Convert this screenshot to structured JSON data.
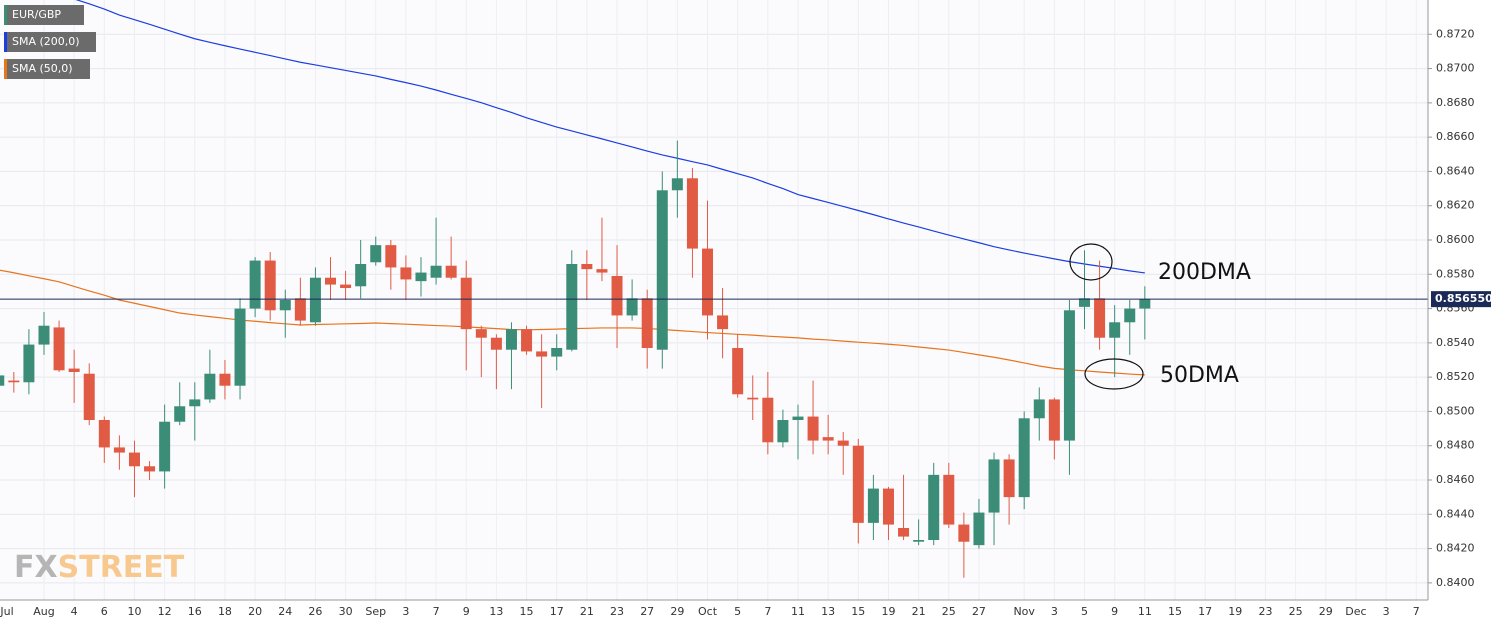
{
  "chart_data": {
    "type": "candlestick",
    "categories": [
      "Jul",
      null,
      null,
      "Aug",
      null,
      "4",
      null,
      "6",
      null,
      "10",
      null,
      "12",
      null,
      "16",
      null,
      "18",
      null,
      "20",
      null,
      "24",
      null,
      "26",
      null,
      "30",
      null,
      "Sep",
      null,
      "3",
      null,
      "7",
      null,
      "9",
      null,
      "13",
      null,
      "15",
      null,
      "17",
      null,
      "21",
      null,
      "23",
      null,
      "27",
      null,
      "29",
      null,
      "Oct",
      null,
      "5",
      null,
      "7",
      null,
      "11",
      null,
      "13",
      null,
      "15",
      null,
      "19",
      null,
      "21",
      null,
      "25",
      null,
      "27",
      null,
      null,
      "Nov",
      null,
      "3",
      null,
      "5",
      null,
      "9",
      null,
      "11",
      null,
      "15",
      null,
      "17",
      null,
      "19",
      null,
      "23",
      null,
      "25",
      null,
      "29",
      null,
      "Dec",
      null,
      "3",
      null,
      "7"
    ],
    "series": [
      {
        "name": "EUR/GBP",
        "up_color": "#3b8d78",
        "down_color": "#e05a44",
        "open": [
          0.8515,
          0.8518,
          0.8517,
          0.8539,
          0.8549,
          0.8525,
          0.8522,
          0.8495,
          0.8479,
          0.8476,
          0.8468,
          0.8465,
          0.8494,
          0.8503,
          0.8507,
          0.8522,
          0.8515,
          0.856,
          0.8588,
          0.8559,
          0.8566,
          0.8552,
          0.8578,
          0.8574,
          0.8573,
          0.8587,
          0.8597,
          0.8584,
          0.8576,
          0.8578,
          0.8585,
          0.8578,
          0.8548,
          0.8543,
          0.8536,
          0.8548,
          0.8535,
          0.8532,
          0.8536,
          0.8586,
          0.8583,
          0.8579,
          0.8556,
          0.8566,
          0.8536,
          0.8629,
          0.8636,
          0.8595,
          0.8556,
          0.8537,
          0.8508,
          0.8508,
          0.8482,
          0.8495,
          0.8497,
          0.8485,
          0.8483,
          0.848,
          0.8435,
          0.8455,
          0.8432,
          0.8424,
          0.8425,
          0.8463,
          0.8434,
          0.8422,
          0.8441,
          0.8472,
          0.845,
          0.8496,
          0.8507,
          0.8483,
          0.8561,
          0.8566,
          0.8543,
          0.8552,
          0.856,
          null,
          null,
          null,
          null,
          null,
          null,
          null,
          null,
          null,
          null,
          null,
          null,
          null,
          null,
          null,
          null,
          null,
          null
        ],
        "high": [
          0.8523,
          0.8523,
          0.8548,
          0.8558,
          0.8553,
          0.8536,
          0.8528,
          0.8497,
          0.8486,
          0.8483,
          0.8471,
          0.8504,
          0.8517,
          0.8517,
          0.8536,
          0.853,
          0.8566,
          0.859,
          0.8593,
          0.8571,
          0.8578,
          0.8584,
          0.859,
          0.8582,
          0.86,
          0.8602,
          0.86,
          0.8591,
          0.859,
          0.8613,
          0.8602,
          0.8588,
          0.855,
          0.8545,
          0.8552,
          0.855,
          0.8545,
          0.8545,
          0.8594,
          0.8594,
          0.8613,
          0.8597,
          0.8577,
          0.8571,
          0.864,
          0.8658,
          0.8642,
          0.8623,
          0.8572,
          0.8545,
          0.8521,
          0.8523,
          0.8501,
          0.8504,
          0.8518,
          0.8498,
          0.8488,
          0.8484,
          0.8463,
          0.8456,
          0.8463,
          0.8437,
          0.847,
          0.847,
          0.8441,
          0.8449,
          0.8476,
          0.8475,
          0.85,
          0.8514,
          0.8508,
          0.8565,
          0.8594,
          0.8588,
          0.8562,
          0.8565,
          0.8573,
          null,
          null,
          null,
          null,
          null,
          null,
          null,
          null,
          null,
          null,
          null,
          null,
          null,
          null,
          null,
          null,
          null,
          null
        ],
        "low": [
          0.8483,
          0.8511,
          0.851,
          0.8533,
          0.8523,
          0.8505,
          0.8492,
          0.847,
          0.8466,
          0.845,
          0.846,
          0.8455,
          0.8492,
          0.8483,
          0.8505,
          0.8507,
          0.8507,
          0.8555,
          0.8553,
          0.8543,
          0.855,
          0.855,
          0.8565,
          0.8565,
          0.8566,
          0.8585,
          0.8571,
          0.8565,
          0.8567,
          0.8574,
          0.8577,
          0.8524,
          0.852,
          0.8513,
          0.8513,
          0.8533,
          0.8502,
          0.8524,
          0.8535,
          0.8565,
          0.8576,
          0.8537,
          0.8553,
          0.8525,
          0.8525,
          0.8613,
          0.8578,
          0.8542,
          0.8531,
          0.8508,
          0.8495,
          0.8475,
          0.8479,
          0.8472,
          0.8475,
          0.8475,
          0.8463,
          0.8423,
          0.8425,
          0.8425,
          0.8425,
          0.8422,
          0.8422,
          0.8432,
          0.8403,
          0.842,
          0.8422,
          0.8434,
          0.8443,
          0.8483,
          0.8472,
          0.8463,
          0.8548,
          0.8536,
          0.852,
          0.8533,
          0.8542,
          null,
          null,
          null,
          null,
          null,
          null,
          null,
          null,
          null,
          null,
          null,
          null,
          null,
          null,
          null,
          null,
          null,
          null
        ],
        "close": [
          0.8521,
          0.8517,
          0.8539,
          0.855,
          0.8524,
          0.8523,
          0.8495,
          0.8479,
          0.8476,
          0.8468,
          0.8465,
          0.8494,
          0.8503,
          0.8507,
          0.8522,
          0.8515,
          0.856,
          0.8588,
          0.8559,
          0.8565,
          0.8553,
          0.8578,
          0.8574,
          0.8572,
          0.8586,
          0.8597,
          0.8584,
          0.8577,
          0.8581,
          0.8585,
          0.8578,
          0.8548,
          0.8543,
          0.8536,
          0.8548,
          0.8535,
          0.8532,
          0.8537,
          0.8586,
          0.8583,
          0.8581,
          0.8556,
          0.8566,
          0.8537,
          0.8629,
          0.8636,
          0.8595,
          0.8556,
          0.8548,
          0.851,
          0.8507,
          0.8482,
          0.8495,
          0.8497,
          0.8483,
          0.8483,
          0.848,
          0.8435,
          0.8455,
          0.8434,
          0.8427,
          0.8425,
          0.8463,
          0.8434,
          0.8424,
          0.8441,
          0.8472,
          0.845,
          0.8496,
          0.8507,
          0.8483,
          0.8559,
          0.8566,
          0.8543,
          0.8552,
          0.856,
          0.85655,
          null,
          null,
          null,
          null,
          null,
          null,
          null,
          null,
          null,
          null,
          null,
          null,
          null,
          null,
          null,
          null,
          null,
          null
        ]
      }
    ],
    "lines": [
      {
        "name": "SMA (200,0)",
        "color": "#1c3ee0",
        "values": [
          0.875,
          0.87485,
          0.87466,
          0.87446,
          0.87427,
          0.87406,
          0.87378,
          0.87347,
          0.87312,
          0.87285,
          0.87258,
          0.8723,
          0.87201,
          0.87174,
          0.87153,
          0.87133,
          0.87114,
          0.87095,
          0.87076,
          0.87056,
          0.87037,
          0.87021,
          0.87005,
          0.86989,
          0.86973,
          0.86957,
          0.86937,
          0.86918,
          0.86898,
          0.86875,
          0.8685,
          0.86826,
          0.86801,
          0.86772,
          0.86744,
          0.86713,
          0.86686,
          0.86659,
          0.86636,
          0.86613,
          0.8659,
          0.86566,
          0.86543,
          0.86519,
          0.86496,
          0.86477,
          0.86457,
          0.86438,
          0.86412,
          0.86387,
          0.86362,
          0.8633,
          0.863,
          0.86265,
          0.86242,
          0.86219,
          0.86196,
          0.86172,
          0.86148,
          0.86123,
          0.86099,
          0.86076,
          0.86052,
          0.86029,
          0.86006,
          0.85984,
          0.85961,
          0.85942,
          0.85924,
          0.85907,
          0.8589,
          0.85874,
          0.8586,
          0.85847,
          0.85834,
          0.8582,
          0.85808,
          null,
          null,
          null,
          null,
          null,
          null,
          null,
          null,
          null,
          null,
          null,
          null,
          null,
          null,
          null,
          null,
          null,
          null
        ]
      },
      {
        "name": "SMA (50,0)",
        "color": "#e8741c",
        "values": [
          0.85825,
          0.85809,
          0.85791,
          0.85774,
          0.85756,
          0.85729,
          0.85703,
          0.85678,
          0.8565,
          0.85631,
          0.85612,
          0.85593,
          0.85574,
          0.85563,
          0.85553,
          0.85543,
          0.85533,
          0.85526,
          0.85518,
          0.85511,
          0.85504,
          0.85507,
          0.85509,
          0.85511,
          0.85513,
          0.85516,
          0.85512,
          0.85509,
          0.85505,
          0.85501,
          0.85498,
          0.85493,
          0.85488,
          0.85483,
          0.85478,
          0.85476,
          0.85478,
          0.8548,
          0.85483,
          0.85485,
          0.85487,
          0.85487,
          0.85487,
          0.85484,
          0.85478,
          0.85472,
          0.85466,
          0.8546,
          0.85455,
          0.8545,
          0.85445,
          0.85439,
          0.85434,
          0.85429,
          0.85422,
          0.85417,
          0.8541,
          0.85404,
          0.85398,
          0.85392,
          0.85385,
          0.85376,
          0.85367,
          0.85358,
          0.85344,
          0.8533,
          0.85316,
          0.853,
          0.85283,
          0.85265,
          0.85251,
          0.85243,
          0.85237,
          0.8523,
          0.85224,
          0.85218,
          0.85213,
          null,
          null,
          null,
          null,
          null,
          null,
          null,
          null,
          null,
          null,
          null,
          null,
          null,
          null,
          null,
          null,
          null,
          null
        ]
      }
    ],
    "last_price": {
      "value": 0.85655,
      "label": "0.856550"
    },
    "annotations": [
      "200DMA",
      "50DMA"
    ],
    "watermark": [
      "FX",
      "STREET"
    ],
    "ylim": [
      0.839,
      0.874
    ],
    "yticks": [
      {
        "value": 0.84,
        "label": "0.8400"
      },
      {
        "value": 0.842,
        "label": "0.8420"
      },
      {
        "value": 0.844,
        "label": "0.8440"
      },
      {
        "value": 0.846,
        "label": "0.8460"
      },
      {
        "value": 0.848,
        "label": "0.8480"
      },
      {
        "value": 0.85,
        "label": "0.8500"
      },
      {
        "value": 0.852,
        "label": "0.8520"
      },
      {
        "value": 0.854,
        "label": "0.8540"
      },
      {
        "value": 0.856,
        "label": "0.8560"
      },
      {
        "value": 0.858,
        "label": "0.8580"
      },
      {
        "value": 0.86,
        "label": "0.8600"
      },
      {
        "value": 0.862,
        "label": "0.8620"
      },
      {
        "value": 0.864,
        "label": "0.8640"
      },
      {
        "value": 0.866,
        "label": "0.8660"
      },
      {
        "value": 0.868,
        "label": "0.8680"
      },
      {
        "value": 0.87,
        "label": "0.8700"
      },
      {
        "value": 0.872,
        "label": "0.8720"
      }
    ],
    "grid": true
  }
}
